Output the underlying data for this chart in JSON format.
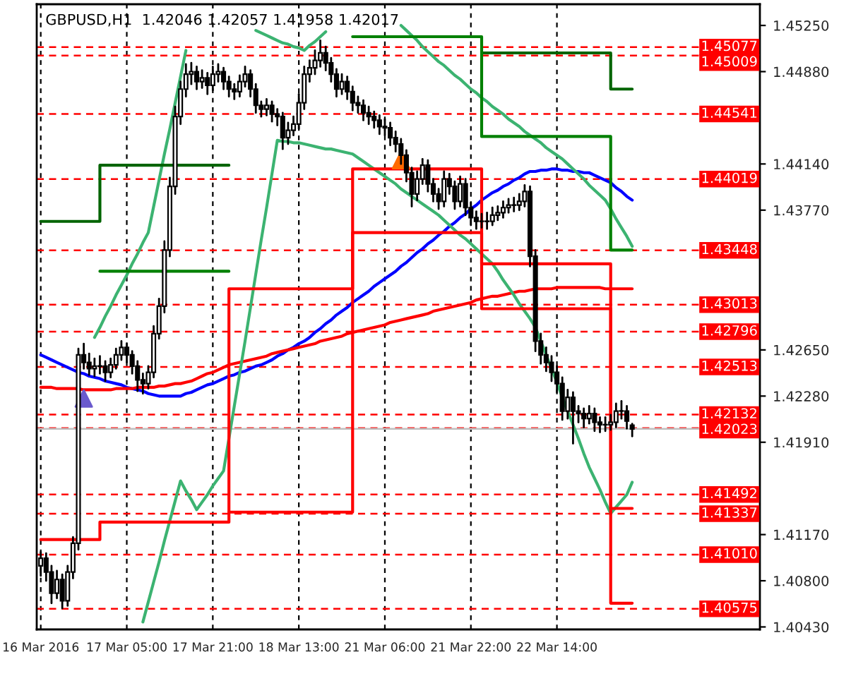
{
  "chart_data": {
    "type": "candlestick",
    "title": "GBPUSD,H1  1.42046 1.42057 1.41958 1.42017",
    "categories": [
      "16 Mar 2016",
      null,
      null,
      null,
      null,
      null,
      null,
      null,
      null,
      null,
      null,
      null,
      null,
      null,
      null,
      null,
      "17 Mar 05:00",
      null,
      null,
      null,
      null,
      null,
      null,
      null,
      null,
      null,
      null,
      null,
      null,
      null,
      null,
      null,
      "17 Mar 21:00",
      null,
      null,
      null,
      null,
      null,
      null,
      null,
      null,
      null,
      null,
      null,
      null,
      null,
      null,
      null,
      "18 Mar 13:00",
      null,
      null,
      null,
      null,
      null,
      null,
      null,
      null,
      null,
      null,
      null,
      null,
      null,
      null,
      null,
      "21 Mar 06:00",
      null,
      null,
      null,
      null,
      null,
      null,
      null,
      null,
      null,
      null,
      null,
      null,
      null,
      null,
      null,
      "21 Mar 22:00",
      null,
      null,
      null,
      null,
      null,
      null,
      null,
      null,
      null,
      null,
      null,
      null,
      null,
      null,
      null,
      "22 Mar 14:00",
      null,
      null,
      null,
      null,
      null,
      null,
      null,
      null,
      null,
      null,
      null,
      null,
      null,
      null
    ],
    "ohlc": [
      [
        1.4092,
        1.4103,
        1.4084,
        1.4098
      ],
      [
        1.4098,
        1.4102,
        1.408,
        1.4087
      ],
      [
        1.4087,
        1.4092,
        1.4062,
        1.407
      ],
      [
        1.407,
        1.4088,
        1.4066,
        1.4081
      ],
      [
        1.4081,
        1.4085,
        1.4058,
        1.4064
      ],
      [
        1.4064,
        1.4092,
        1.406,
        1.4087
      ],
      [
        1.4087,
        1.4115,
        1.4082,
        1.411
      ],
      [
        1.411,
        1.4266,
        1.4105,
        1.4261
      ],
      [
        1.4261,
        1.427,
        1.425,
        1.4255
      ],
      [
        1.4255,
        1.4262,
        1.4245,
        1.425
      ],
      [
        1.425,
        1.4258,
        1.4244,
        1.4252
      ],
      [
        1.4252,
        1.426,
        1.4246,
        1.4252
      ],
      [
        1.4252,
        1.4256,
        1.424,
        1.4247
      ],
      [
        1.4247,
        1.4258,
        1.4243,
        1.4253
      ],
      [
        1.4253,
        1.4266,
        1.425,
        1.4261
      ],
      [
        1.4261,
        1.4272,
        1.4257,
        1.4267
      ],
      [
        1.4267,
        1.427,
        1.4255,
        1.4261
      ],
      [
        1.4261,
        1.4264,
        1.4246,
        1.4252
      ],
      [
        1.4252,
        1.4256,
        1.4232,
        1.4241
      ],
      [
        1.4241,
        1.4246,
        1.423,
        1.4238
      ],
      [
        1.4238,
        1.4252,
        1.4234,
        1.4247
      ],
      [
        1.4247,
        1.4284,
        1.4243,
        1.4278
      ],
      [
        1.4278,
        1.4306,
        1.4274,
        1.43
      ],
      [
        1.43,
        1.4352,
        1.4295,
        1.4345
      ],
      [
        1.4345,
        1.4403,
        1.434,
        1.4396
      ],
      [
        1.4396,
        1.446,
        1.439,
        1.4452
      ],
      [
        1.4452,
        1.448,
        1.4446,
        1.4474
      ],
      [
        1.4474,
        1.4494,
        1.4468,
        1.4486
      ],
      [
        1.4486,
        1.4495,
        1.4478,
        1.4488
      ],
      [
        1.4488,
        1.4492,
        1.4474,
        1.448
      ],
      [
        1.448,
        1.4489,
        1.4475,
        1.4483
      ],
      [
        1.4483,
        1.4487,
        1.447,
        1.4477
      ],
      [
        1.4477,
        1.4492,
        1.4473,
        1.4486
      ],
      [
        1.4486,
        1.4494,
        1.448,
        1.4488
      ],
      [
        1.4488,
        1.4491,
        1.4474,
        1.448
      ],
      [
        1.448,
        1.4484,
        1.4468,
        1.4474
      ],
      [
        1.4474,
        1.4478,
        1.4466,
        1.4472
      ],
      [
        1.4472,
        1.4485,
        1.4468,
        1.448
      ],
      [
        1.448,
        1.4492,
        1.4476,
        1.4486
      ],
      [
        1.4486,
        1.4489,
        1.4468,
        1.4474
      ],
      [
        1.4474,
        1.4478,
        1.4455,
        1.4461
      ],
      [
        1.4461,
        1.4464,
        1.4452,
        1.4458
      ],
      [
        1.4458,
        1.4466,
        1.4453,
        1.4461
      ],
      [
        1.4461,
        1.4464,
        1.4448,
        1.4454
      ],
      [
        1.4454,
        1.4458,
        1.4445,
        1.4452
      ],
      [
        1.4452,
        1.4455,
        1.4426,
        1.4435
      ],
      [
        1.4435,
        1.4447,
        1.443,
        1.4441
      ],
      [
        1.4441,
        1.4452,
        1.4437,
        1.4446
      ],
      [
        1.4446,
        1.447,
        1.4442,
        1.4463
      ],
      [
        1.4463,
        1.4492,
        1.4458,
        1.4486
      ],
      [
        1.4486,
        1.4497,
        1.448,
        1.4491
      ],
      [
        1.4491,
        1.4505,
        1.4486,
        1.4497
      ],
      [
        1.4497,
        1.4513,
        1.4492,
        1.4503
      ],
      [
        1.4503,
        1.4508,
        1.4489,
        1.4495
      ],
      [
        1.4495,
        1.4499,
        1.448,
        1.4486
      ],
      [
        1.4486,
        1.449,
        1.4468,
        1.4474
      ],
      [
        1.4474,
        1.4486,
        1.447,
        1.448
      ],
      [
        1.448,
        1.4484,
        1.4466,
        1.4472
      ],
      [
        1.4472,
        1.4476,
        1.4457,
        1.4463
      ],
      [
        1.4463,
        1.4468,
        1.4455,
        1.4461
      ],
      [
        1.4461,
        1.4465,
        1.4449,
        1.4455
      ],
      [
        1.4455,
        1.446,
        1.4446,
        1.4452
      ],
      [
        1.4452,
        1.4456,
        1.4443,
        1.4449
      ],
      [
        1.4449,
        1.4453,
        1.4438,
        1.4444
      ],
      [
        1.4444,
        1.445,
        1.4437,
        1.4443
      ],
      [
        1.4443,
        1.4447,
        1.4429,
        1.4435
      ],
      [
        1.4435,
        1.444,
        1.4424,
        1.443
      ],
      [
        1.443,
        1.4434,
        1.4414,
        1.4421
      ],
      [
        1.4421,
        1.4425,
        1.44,
        1.4407
      ],
      [
        1.4407,
        1.4411,
        1.438,
        1.439
      ],
      [
        1.439,
        1.4408,
        1.4385,
        1.4402
      ],
      [
        1.4402,
        1.4418,
        1.4398,
        1.4413
      ],
      [
        1.4413,
        1.4417,
        1.4392,
        1.4398
      ],
      [
        1.4398,
        1.4402,
        1.4384,
        1.439
      ],
      [
        1.439,
        1.4394,
        1.4378,
        1.4384
      ],
      [
        1.4384,
        1.4408,
        1.438,
        1.4402
      ],
      [
        1.4402,
        1.4406,
        1.439,
        1.4396
      ],
      [
        1.4396,
        1.44,
        1.4378,
        1.4384
      ],
      [
        1.4384,
        1.4404,
        1.438,
        1.4398
      ],
      [
        1.4398,
        1.4402,
        1.4373,
        1.4379
      ],
      [
        1.4379,
        1.4383,
        1.4365,
        1.4371
      ],
      [
        1.4371,
        1.4376,
        1.4362,
        1.4368
      ],
      [
        1.4368,
        1.4374,
        1.4363,
        1.4368
      ],
      [
        1.4368,
        1.4375,
        1.4362,
        1.4368
      ],
      [
        1.4368,
        1.4379,
        1.4365,
        1.4373
      ],
      [
        1.4373,
        1.438,
        1.4369,
        1.4375
      ],
      [
        1.4375,
        1.4384,
        1.4371,
        1.4379
      ],
      [
        1.4379,
        1.4386,
        1.4375,
        1.4381
      ],
      [
        1.4381,
        1.4387,
        1.4376,
        1.4381
      ],
      [
        1.4381,
        1.439,
        1.4377,
        1.4384
      ],
      [
        1.4384,
        1.4397,
        1.438,
        1.4392
      ],
      [
        1.4392,
        1.4396,
        1.4332,
        1.434
      ],
      [
        1.434,
        1.4345,
        1.4264,
        1.4272
      ],
      [
        1.4272,
        1.4278,
        1.4254,
        1.4261
      ],
      [
        1.4261,
        1.4267,
        1.4248,
        1.4255
      ],
      [
        1.4255,
        1.426,
        1.424,
        1.4247
      ],
      [
        1.4247,
        1.4252,
        1.4231,
        1.4238
      ],
      [
        1.4238,
        1.4243,
        1.4209,
        1.4216
      ],
      [
        1.4216,
        1.4233,
        1.421,
        1.4227
      ],
      [
        1.4227,
        1.4231,
        1.419,
        1.4216
      ],
      [
        1.4216,
        1.422,
        1.4207,
        1.4214
      ],
      [
        1.4214,
        1.4218,
        1.4203,
        1.421
      ],
      [
        1.421,
        1.422,
        1.4206,
        1.4214
      ],
      [
        1.4214,
        1.4218,
        1.42,
        1.4207
      ],
      [
        1.4207,
        1.4211,
        1.4199,
        1.4205
      ],
      [
        1.4205,
        1.4211,
        1.42,
        1.4205
      ],
      [
        1.4205,
        1.4213,
        1.4201,
        1.4207
      ],
      [
        1.4207,
        1.4222,
        1.4203,
        1.4216
      ],
      [
        1.4216,
        1.4224,
        1.421,
        1.4216
      ],
      [
        1.4216,
        1.422,
        1.4202,
        1.4208
      ],
      [
        1.42046,
        1.42057,
        1.41958,
        1.42017
      ]
    ],
    "series": [
      {
        "type": "line",
        "color": "#0000ff",
        "values": [
          1.4261,
          1.4259,
          1.4257,
          1.4255,
          1.4253,
          1.4251,
          1.4249,
          1.4247,
          1.4246,
          1.4244,
          1.4243,
          1.4242,
          1.424,
          1.4239,
          1.4238,
          1.4237,
          1.4235,
          1.4234,
          1.4233,
          1.4232,
          1.423,
          1.4229,
          1.4228,
          1.4228,
          1.4228,
          1.4228,
          1.4228,
          1.423,
          1.4231,
          1.4233,
          1.4235,
          1.4237,
          1.4238,
          1.424,
          1.4242,
          1.4244,
          1.4245,
          1.4247,
          1.4248,
          1.425,
          1.4252,
          1.4253,
          1.4255,
          1.4257,
          1.426,
          1.4262,
          1.4265,
          1.4267,
          1.427,
          1.4272,
          1.4275,
          1.4279,
          1.4282,
          1.4286,
          1.4289,
          1.4293,
          1.4296,
          1.4299,
          1.4303,
          1.4306,
          1.4309,
          1.4312,
          1.4316,
          1.4319,
          1.4322,
          1.4325,
          1.4328,
          1.4332,
          1.4335,
          1.4339,
          1.4343,
          1.4346,
          1.435,
          1.4353,
          1.4357,
          1.436,
          1.4364,
          1.4367,
          1.4371,
          1.4374,
          1.4378,
          1.4381,
          1.4385,
          1.4388,
          1.4391,
          1.4393,
          1.4396,
          1.4398,
          1.4401,
          1.4403,
          1.4406,
          1.4408,
          1.4408,
          1.4409,
          1.4409,
          1.441,
          1.441,
          1.4409,
          1.4409,
          1.4408,
          1.4408,
          1.4407,
          1.4407,
          1.4405,
          1.4403,
          1.4401,
          1.4399,
          1.4395,
          1.4392,
          1.4388,
          1.4385
        ]
      },
      {
        "type": "line",
        "color": "#ff0000",
        "values": [
          1.4235,
          1.4235,
          1.4235,
          1.4234,
          1.4234,
          1.4234,
          1.4234,
          1.4234,
          1.4233,
          1.4233,
          1.4233,
          1.4233,
          1.4233,
          1.4233,
          1.4234,
          1.4234,
          1.4234,
          1.4234,
          1.4235,
          1.4235,
          1.4235,
          1.4235,
          1.4236,
          1.4236,
          1.4237,
          1.4238,
          1.4238,
          1.4239,
          1.424,
          1.4242,
          1.4244,
          1.4246,
          1.4247,
          1.4249,
          1.4251,
          1.4253,
          1.4254,
          1.4255,
          1.4256,
          1.4257,
          1.4258,
          1.4259,
          1.426,
          1.4262,
          1.4263,
          1.4264,
          1.4265,
          1.4266,
          1.4267,
          1.4268,
          1.4269,
          1.427,
          1.4272,
          1.4273,
          1.4274,
          1.4275,
          1.4276,
          1.4278,
          1.4279,
          1.428,
          1.4281,
          1.4282,
          1.4283,
          1.4284,
          1.4285,
          1.4287,
          1.4288,
          1.4289,
          1.429,
          1.4291,
          1.4292,
          1.4293,
          1.4294,
          1.4296,
          1.4297,
          1.4298,
          1.4299,
          1.43,
          1.4301,
          1.4302,
          1.4303,
          1.4305,
          1.4306,
          1.4307,
          1.4308,
          1.4308,
          1.4309,
          1.431,
          1.4311,
          1.4312,
          1.4312,
          1.4313,
          1.4314,
          1.4314,
          1.4314,
          1.4314,
          1.4315,
          1.4315,
          1.4315,
          1.4315,
          1.4315,
          1.4315,
          1.4315,
          1.4315,
          1.4315,
          1.4314,
          1.4314,
          1.4314,
          1.4314,
          1.4314,
          1.4314
        ]
      },
      {
        "type": "line",
        "color": "#3cb371",
        "values": [
          null,
          null,
          null,
          null,
          null,
          null,
          null,
          null,
          null,
          null,
          1.4275,
          1.4283,
          1.4292,
          1.43,
          1.4309,
          1.4317,
          1.4325,
          1.4334,
          1.4342,
          1.4351,
          1.4359,
          1.438,
          1.4401,
          1.4422,
          1.4442,
          1.4463,
          1.4484,
          1.4505,
          null,
          null,
          null,
          null,
          null,
          null,
          null,
          null,
          null,
          null,
          null,
          null,
          1.4521,
          1.4519,
          1.4517,
          1.4515,
          1.4513,
          1.4511,
          1.451,
          1.4508,
          1.4507,
          1.4505,
          1.4509,
          1.4512,
          1.4516,
          1.452,
          null,
          null,
          null,
          null,
          null,
          null,
          null,
          null,
          null,
          null,
          null,
          null,
          null,
          1.4525,
          1.4521,
          1.4517,
          1.4513,
          1.4508,
          1.4504,
          1.45,
          1.4496,
          1.4493,
          1.4489,
          1.4485,
          1.4482,
          1.4478,
          1.4474,
          1.4471,
          1.4467,
          1.4464,
          1.446,
          1.4457,
          1.4454,
          1.445,
          1.4447,
          1.4444,
          1.444,
          1.4437,
          1.4434,
          1.4431,
          1.4427,
          1.4424,
          1.4421,
          1.4418,
          1.4414,
          1.441,
          1.4406,
          1.4402,
          1.4397,
          1.4393,
          1.4389,
          1.4385,
          1.4378,
          1.437,
          1.4363,
          1.4356,
          1.4348
        ]
      },
      {
        "type": "line",
        "color": "#3cb371",
        "values": [
          null,
          null,
          null,
          null,
          null,
          null,
          null,
          null,
          null,
          null,
          null,
          null,
          null,
          null,
          null,
          null,
          null,
          null,
          null,
          1.4047,
          1.4063,
          1.4079,
          1.4095,
          1.4112,
          1.4128,
          1.4144,
          1.416,
          1.4152,
          1.4145,
          1.4137,
          1.4143,
          1.4149,
          1.4156,
          1.4162,
          1.4168,
          1.4194,
          1.422,
          1.4246,
          1.4272,
          1.4299,
          1.4326,
          1.4353,
          1.4379,
          1.4406,
          1.4433,
          1.4432,
          1.4432,
          1.4431,
          1.4431,
          1.443,
          1.4429,
          1.4428,
          1.4427,
          1.4426,
          1.4426,
          1.4425,
          1.4424,
          1.4423,
          1.4422,
          1.4419,
          1.4416,
          1.4413,
          1.441,
          1.4407,
          1.4404,
          1.4401,
          1.4398,
          1.4394,
          1.4391,
          1.4388,
          1.4385,
          1.4382,
          1.4379,
          1.4376,
          1.4373,
          1.4369,
          1.4365,
          1.4361,
          1.4357,
          1.4354,
          1.435,
          1.4346,
          1.4342,
          1.4338,
          1.4334,
          1.4328,
          1.4321,
          1.4315,
          1.4309,
          1.4302,
          1.4296,
          1.429,
          1.4283,
          1.4272,
          1.4261,
          1.425,
          1.4239,
          1.4227,
          1.4216,
          1.4205,
          1.4194,
          1.4182,
          1.4171,
          1.4162,
          1.4153,
          1.4143,
          1.4134,
          1.4139,
          1.4144,
          1.4149,
          1.4159
        ]
      },
      {
        "type": "step",
        "color": "#006400",
        "values": [
          1.4368,
          1.4368,
          1.4368,
          1.4368,
          1.4368,
          1.4368,
          1.4368,
          1.4368,
          1.4368,
          1.4368,
          1.4368,
          1.4413,
          1.4413,
          1.4413,
          1.4413,
          1.4413,
          1.4413,
          1.4413,
          1.4413,
          1.4413,
          1.4413,
          1.4413,
          1.4413,
          1.4413,
          1.4413,
          1.4413,
          1.4413,
          1.4413,
          1.4413,
          1.4413,
          1.4413,
          1.4413,
          1.4413,
          1.4413,
          1.4413,
          null,
          null,
          null,
          null,
          null,
          null,
          null,
          null,
          null,
          null,
          null,
          null,
          null,
          null,
          null,
          null,
          null,
          null,
          null,
          null,
          null,
          null,
          null,
          null,
          null,
          null,
          null,
          null,
          null,
          null,
          null,
          null,
          null,
          null,
          null,
          null,
          null,
          null,
          null,
          null,
          null,
          null,
          null,
          null,
          null,
          null,
          null,
          1.4503,
          1.4503,
          1.4503,
          1.4503,
          1.4503,
          1.4503,
          1.4503,
          1.4503,
          1.4503,
          1.4503,
          1.4503,
          1.4503,
          1.4503,
          1.4503,
          1.4503,
          1.4503,
          1.4503,
          1.4503,
          1.4503,
          1.4503,
          1.4503,
          1.4503,
          1.4503,
          1.4503,
          1.4474,
          1.4474,
          1.4474,
          1.4474,
          1.4474
        ]
      },
      {
        "type": "step",
        "color": "#008000",
        "values": [
          null,
          null,
          null,
          null,
          null,
          null,
          null,
          null,
          null,
          null,
          null,
          1.4328,
          1.4328,
          1.4328,
          1.4328,
          1.4328,
          1.4328,
          1.4328,
          1.4328,
          1.4328,
          1.4328,
          1.4328,
          1.4328,
          1.4328,
          1.4328,
          1.4328,
          1.4328,
          1.4328,
          1.4328,
          1.4328,
          1.4328,
          1.4328,
          1.4328,
          1.4328,
          1.4328,
          null,
          null,
          null,
          null,
          null,
          null,
          null,
          null,
          null,
          null,
          null,
          null,
          null,
          null,
          null,
          null,
          null,
          null,
          null,
          null,
          null,
          null,
          null,
          1.4516,
          1.4516,
          1.4516,
          1.4516,
          1.4516,
          1.4516,
          1.4516,
          1.4516,
          1.4516,
          1.4516,
          1.4516,
          1.4516,
          1.4516,
          1.4516,
          1.4516,
          1.4516,
          1.4516,
          1.4516,
          1.4516,
          1.4516,
          1.4516,
          1.4516,
          1.4516,
          1.4516,
          1.4436,
          1.4436,
          1.4436,
          1.4436,
          1.4436,
          1.4436,
          1.4436,
          1.4436,
          1.4436,
          1.4436,
          1.4436,
          1.4436,
          1.4436,
          1.4436,
          1.4436,
          1.4436,
          1.4436,
          1.4436,
          1.4436,
          1.4436,
          1.4436,
          1.4436,
          1.4436,
          1.4436,
          1.4345,
          1.4345,
          1.4345,
          1.4345,
          1.4345
        ]
      },
      {
        "type": "step",
        "color": "#ff0000",
        "values": [
          null,
          null,
          null,
          null,
          null,
          null,
          null,
          null,
          null,
          null,
          null,
          null,
          null,
          null,
          null,
          null,
          null,
          null,
          null,
          null,
          null,
          null,
          null,
          null,
          null,
          null,
          null,
          null,
          null,
          null,
          null,
          null,
          null,
          null,
          null,
          1.4135,
          1.4135,
          1.4135,
          1.4135,
          1.4135,
          1.4135,
          1.4135,
          1.4135,
          1.4135,
          1.4135,
          1.4135,
          1.4135,
          1.4135,
          1.4135,
          1.4135,
          1.4135,
          1.4135,
          1.4135,
          1.4135,
          1.4135,
          1.4135,
          1.4135,
          1.4135,
          1.4359,
          1.4359,
          1.4359,
          1.4359,
          1.4359,
          1.4359,
          1.4359,
          1.4359,
          1.4359,
          1.4359,
          1.4359,
          1.4359,
          1.4359,
          1.4359,
          1.4359,
          1.4359,
          1.4359,
          1.4359,
          1.4359,
          1.4359,
          1.4359,
          1.4359,
          1.4359,
          1.4359,
          1.4298,
          1.4298,
          1.4298,
          1.4298,
          1.4298,
          1.4298,
          1.4298,
          1.4298,
          1.4298,
          1.4298,
          1.4298,
          1.4298,
          1.4298,
          1.4298,
          1.4298,
          1.4298,
          1.4298,
          1.4298,
          1.4298,
          1.4298,
          1.4298,
          1.4298,
          1.4298,
          1.4298,
          1.4062,
          1.4062,
          1.4062,
          1.4062,
          1.4062
        ]
      },
      {
        "type": "step",
        "color": "#ff0000",
        "values": [
          1.4113,
          1.4113,
          1.4113,
          1.4113,
          1.4113,
          1.4113,
          1.4113,
          1.4113,
          1.4113,
          1.4113,
          1.4113,
          1.4127,
          1.4127,
          1.4127,
          1.4127,
          1.4127,
          1.4127,
          1.4127,
          1.4127,
          1.4127,
          1.4127,
          1.4127,
          1.4127,
          1.4127,
          1.4127,
          1.4127,
          1.4127,
          1.4127,
          1.4127,
          1.4127,
          1.4127,
          1.4127,
          1.4127,
          1.4127,
          1.4127,
          1.4314,
          1.4314,
          1.4314,
          1.4314,
          1.4314,
          1.4314,
          1.4314,
          1.4314,
          1.4314,
          1.4314,
          1.4314,
          1.4314,
          1.4314,
          1.4314,
          1.4314,
          1.4314,
          1.4314,
          1.4314,
          1.4314,
          1.4314,
          1.4314,
          1.4314,
          1.4314,
          1.441,
          1.441,
          1.441,
          1.441,
          1.441,
          1.441,
          1.441,
          1.441,
          1.441,
          1.441,
          1.441,
          1.441,
          1.441,
          1.441,
          1.441,
          1.441,
          1.441,
          1.441,
          1.441,
          1.441,
          1.441,
          1.441,
          1.441,
          1.441,
          1.4334,
          1.4334,
          1.4334,
          1.4334,
          1.4334,
          1.4334,
          1.4334,
          1.4334,
          1.4334,
          1.4334,
          1.4334,
          1.4334,
          1.4334,
          1.4334,
          1.4334,
          1.4334,
          1.4334,
          1.4334,
          1.4334,
          1.4334,
          1.4334,
          1.4334,
          1.4334,
          1.4334,
          1.4138,
          1.4138,
          1.4138,
          1.4138,
          1.4138
        ]
      },
      {
        "type": "scatter",
        "color": "#6a5acd",
        "marker": "triangle",
        "values": [
          null,
          null,
          null,
          null,
          null,
          null,
          null,
          null,
          1.4226,
          null,
          null,
          null,
          null,
          null,
          null,
          null,
          null,
          null,
          null,
          null,
          null,
          null,
          null,
          null,
          null,
          null,
          null,
          null,
          null,
          null,
          null,
          null,
          null,
          null,
          null,
          null,
          null,
          null,
          null,
          null,
          null,
          null,
          null,
          null,
          null,
          null,
          null,
          null,
          null,
          null,
          null,
          null,
          null,
          null,
          null,
          null,
          null,
          null,
          null,
          null,
          null,
          null,
          null,
          null,
          null,
          null,
          null,
          null,
          null,
          null,
          null,
          null,
          null,
          null,
          null,
          null,
          null,
          null,
          null,
          null,
          null,
          null,
          null,
          null,
          null,
          null,
          null,
          null,
          null,
          null,
          null,
          null,
          null,
          null,
          null,
          null,
          null,
          null,
          null,
          null,
          null,
          null,
          null,
          null,
          null,
          null,
          null,
          null,
          null,
          null,
          null
        ]
      },
      {
        "type": "scatter",
        "color": "#ff6a00",
        "marker": "triangle",
        "values": [
          null,
          null,
          null,
          null,
          null,
          null,
          null,
          null,
          null,
          null,
          null,
          null,
          null,
          null,
          null,
          null,
          null,
          null,
          null,
          null,
          null,
          null,
          null,
          null,
          null,
          null,
          null,
          null,
          null,
          null,
          null,
          null,
          null,
          null,
          null,
          null,
          null,
          null,
          null,
          null,
          null,
          null,
          null,
          null,
          null,
          null,
          null,
          null,
          null,
          null,
          null,
          null,
          null,
          null,
          null,
          null,
          null,
          null,
          null,
          null,
          null,
          null,
          null,
          null,
          null,
          null,
          null,
          1.4417,
          null,
          null,
          null,
          null,
          null,
          null,
          null,
          null,
          null,
          null,
          null,
          null,
          null,
          null,
          null,
          null,
          null,
          null,
          null,
          null,
          null,
          null,
          null,
          null,
          null,
          null,
          null,
          null,
          null,
          null,
          null,
          null,
          null,
          null,
          null,
          null,
          null,
          null,
          null,
          null,
          null,
          null,
          null
        ]
      }
    ],
    "ref_lines": [
      {
        "axis": "y",
        "value": 1.45077,
        "label": "1.45077",
        "color": "#ff0000",
        "line_style": "dashed"
      },
      {
        "axis": "y",
        "value": 1.45009,
        "label": "1.45009",
        "color": "#ff0000",
        "line_style": "dashed"
      },
      {
        "axis": "y",
        "value": 1.44541,
        "label": "1.44541",
        "color": "#ff0000",
        "line_style": "dashed"
      },
      {
        "axis": "y",
        "value": 1.44019,
        "label": "1.44019",
        "color": "#ff0000",
        "line_style": "dashed"
      },
      {
        "axis": "y",
        "value": 1.43448,
        "label": "1.43448",
        "color": "#ff0000",
        "line_style": "dashed"
      },
      {
        "axis": "y",
        "value": 1.43013,
        "label": "1.43013",
        "color": "#ff0000",
        "line_style": "dashed"
      },
      {
        "axis": "y",
        "value": 1.42796,
        "label": "1.42796",
        "color": "#ff0000",
        "line_style": "dashed"
      },
      {
        "axis": "y",
        "value": 1.42513,
        "label": "1.42513",
        "color": "#ff0000",
        "line_style": "dashed"
      },
      {
        "axis": "y",
        "value": 1.42132,
        "label": "1.42132",
        "color": "#ff0000",
        "line_style": "dashed"
      },
      {
        "axis": "y",
        "value": 1.42023,
        "label": "1.42023",
        "color": "#ff0000",
        "line_style": "dashed"
      },
      {
        "axis": "y",
        "value": 1.42017,
        "color": "#c0c0c0",
        "line_style": "solid"
      },
      {
        "axis": "y",
        "value": 1.41492,
        "label": "1.41492",
        "color": "#ff0000",
        "line_style": "dashed"
      },
      {
        "axis": "y",
        "value": 1.41337,
        "label": "1.41337",
        "color": "#ff0000",
        "line_style": "dashed"
      },
      {
        "axis": "y",
        "value": 1.4101,
        "label": "1.41010",
        "color": "#ff0000",
        "line_style": "dashed"
      },
      {
        "axis": "y",
        "value": 1.40575,
        "label": "1.40575",
        "color": "#ff0000",
        "line_style": "dashed"
      }
    ],
    "ylim": [
      1.4041,
      1.4542
    ],
    "yticks": [
      {
        "value": 1.4043,
        "label": "1.40430"
      },
      {
        "value": 1.408,
        "label": "1.40800"
      },
      {
        "value": 1.4117,
        "label": "1.41170"
      },
      {
        "value": 1.4191,
        "label": "1.41910"
      },
      {
        "value": 1.4228,
        "label": "1.42280"
      },
      {
        "value": 1.4265,
        "label": "1.42650"
      },
      {
        "value": 1.4377,
        "label": "1.43770"
      },
      {
        "value": 1.4414,
        "label": "1.44140"
      },
      {
        "value": 1.4488,
        "label": "1.44880"
      },
      {
        "value": 1.4525,
        "label": "1.45250"
      }
    ],
    "grid": "x"
  }
}
